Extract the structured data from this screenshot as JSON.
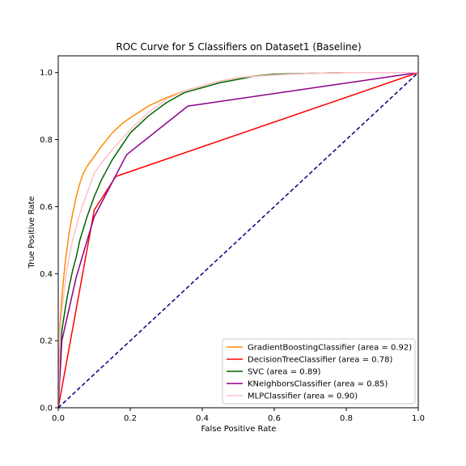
{
  "chart_data": {
    "type": "line",
    "title": "ROC Curve for 5 Classifiers on Dataset1 (Baseline)",
    "xlabel": "False Positive Rate",
    "ylabel": "True Positive Rate",
    "xlim": [
      0.0,
      1.0
    ],
    "ylim": [
      0.0,
      1.05
    ],
    "x_ticks": [
      "0.0",
      "0.2",
      "0.4",
      "0.6",
      "0.8",
      "1.0"
    ],
    "y_ticks": [
      "0.0",
      "0.2",
      "0.4",
      "0.6",
      "0.8",
      "1.0"
    ],
    "legend_position": "lower-right",
    "grid": false,
    "series": [
      {
        "name": "GradientBoostingClassifier (area = 0.92)",
        "color": "#ff8c00",
        "x": [
          0.0,
          0.005,
          0.01,
          0.02,
          0.03,
          0.04,
          0.05,
          0.06,
          0.07,
          0.08,
          0.1,
          0.12,
          0.15,
          0.18,
          0.2,
          0.25,
          0.3,
          0.35,
          0.4,
          0.45,
          0.5,
          0.55,
          0.6,
          0.7,
          0.8,
          0.9,
          1.0
        ],
        "y": [
          0.0,
          0.25,
          0.33,
          0.44,
          0.52,
          0.58,
          0.63,
          0.67,
          0.7,
          0.72,
          0.75,
          0.78,
          0.82,
          0.85,
          0.865,
          0.9,
          0.925,
          0.945,
          0.96,
          0.975,
          0.985,
          0.99,
          0.995,
          0.998,
          1.0,
          1.0,
          1.0
        ]
      },
      {
        "name": "DecisionTreeClassifier (area = 0.78)",
        "color": "#ff0000",
        "x": [
          0.0,
          0.1,
          0.16,
          1.0
        ],
        "y": [
          0.0,
          0.59,
          0.69,
          1.0
        ]
      },
      {
        "name": "SVC (area = 0.89)",
        "color": "#006400",
        "x": [
          0.0,
          0.01,
          0.02,
          0.03,
          0.04,
          0.05,
          0.06,
          0.08,
          0.1,
          0.12,
          0.15,
          0.2,
          0.25,
          0.3,
          0.35,
          0.4,
          0.45,
          0.5,
          0.55,
          0.6,
          0.7,
          0.8,
          0.9,
          1.0
        ],
        "y": [
          0.0,
          0.23,
          0.3,
          0.36,
          0.41,
          0.45,
          0.5,
          0.57,
          0.63,
          0.68,
          0.74,
          0.82,
          0.87,
          0.91,
          0.94,
          0.955,
          0.97,
          0.98,
          0.99,
          0.995,
          0.998,
          1.0,
          1.0,
          1.0
        ]
      },
      {
        "name": "KNeighborsClassifier (area = 0.85)",
        "color": "#8b008b",
        "x": [
          0.0,
          0.01,
          0.05,
          0.1,
          0.19,
          0.36,
          1.0
        ],
        "y": [
          0.0,
          0.2,
          0.39,
          0.57,
          0.755,
          0.9,
          1.0
        ]
      },
      {
        "name": "MLPClassifier (area = 0.90)",
        "color": "#ffc0cb",
        "x": [
          0.0,
          0.005,
          0.01,
          0.02,
          0.03,
          0.04,
          0.05,
          0.06,
          0.08,
          0.1,
          0.12,
          0.15,
          0.2,
          0.25,
          0.3,
          0.35,
          0.4,
          0.45,
          0.5,
          0.6,
          0.7,
          0.8,
          0.9,
          1.0
        ],
        "y": [
          0.0,
          0.22,
          0.29,
          0.38,
          0.45,
          0.5,
          0.54,
          0.58,
          0.64,
          0.7,
          0.73,
          0.77,
          0.83,
          0.88,
          0.92,
          0.945,
          0.96,
          0.975,
          0.985,
          0.993,
          0.998,
          1.0,
          1.0,
          1.0
        ]
      }
    ],
    "reference_line": {
      "name": "chance",
      "color": "#000080",
      "style": "dashed",
      "x": [
        0.0,
        1.0
      ],
      "y": [
        0.0,
        1.0
      ]
    }
  }
}
